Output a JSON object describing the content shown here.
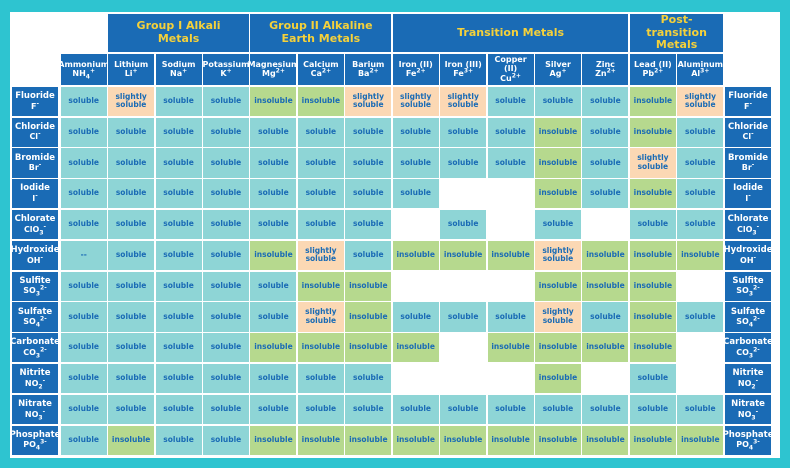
{
  "groups": [
    {
      "cations": [
        {
          "name": "Ammonium",
          "symbol": "NH",
          "sub": "4",
          "charge": "+"
        }
      ]
    },
    {
      "title": "Group I Alkali Metals",
      "cations": [
        {
          "name": "Lithium",
          "symbol": "Li",
          "charge": "+"
        },
        {
          "name": "Sodium",
          "symbol": "Na",
          "charge": "+"
        },
        {
          "name": "Potassium",
          "symbol": "K",
          "charge": "+"
        }
      ]
    },
    {
      "title": "Group II Alkaline Earth Metals",
      "cations": [
        {
          "name": "Magnesium",
          "symbol": "Mg",
          "charge": "2+"
        },
        {
          "name": "Calcium",
          "symbol": "Ca",
          "charge": "2+"
        },
        {
          "name": "Barium",
          "symbol": "Ba",
          "charge": "2+"
        }
      ]
    },
    {
      "title": "Transition Metals",
      "cations": [
        {
          "name": "Iron (II)",
          "symbol": "Fe",
          "charge": "2+"
        },
        {
          "name": "Iron (III)",
          "symbol": "Fe",
          "charge": "3+"
        },
        {
          "name": "Copper (II)",
          "symbol": "Cu",
          "charge": "2+"
        },
        {
          "name": "Silver",
          "symbol": "Ag",
          "charge": "+"
        },
        {
          "name": "Zinc",
          "symbol": "Zn",
          "charge": "2+"
        }
      ]
    },
    {
      "title": "Post-transition Metals",
      "cations": [
        {
          "name": "Lead (II)",
          "symbol": "Pb",
          "charge": "2+"
        },
        {
          "name": "Aluminum",
          "symbol": "Al",
          "charge": "3+"
        }
      ]
    }
  ],
  "rows": [
    {
      "anion": {
        "name": "Fluoride",
        "symbol": "F",
        "charge": "-"
      },
      "cells": [
        "soluble",
        "slightly soluble",
        "soluble",
        "soluble",
        "insoluble",
        "insoluble",
        "slightly soluble",
        "slightly soluble",
        "slightly soluble",
        "soluble",
        "soluble",
        "soluble",
        "insoluble",
        "slightly soluble"
      ]
    },
    {
      "anion": {
        "name": "Chloride",
        "symbol": "Cl",
        "charge": "-"
      },
      "cells": [
        "soluble",
        "soluble",
        "soluble",
        "soluble",
        "soluble",
        "soluble",
        "soluble",
        "soluble",
        "soluble",
        "soluble",
        "insoluble",
        "soluble",
        "insoluble",
        "soluble"
      ]
    },
    {
      "anion": {
        "name": "Bromide",
        "symbol": "Br",
        "charge": "-"
      },
      "cells": [
        "soluble",
        "soluble",
        "soluble",
        "soluble",
        "soluble",
        "soluble",
        "soluble",
        "soluble",
        "soluble",
        "soluble",
        "insoluble",
        "soluble",
        "slightly soluble",
        "soluble"
      ]
    },
    {
      "anion": {
        "name": "Iodide",
        "symbol": "I",
        "charge": "-"
      },
      "cells": [
        "soluble",
        "soluble",
        "soluble",
        "soluble",
        "soluble",
        "soluble",
        "soluble",
        "soluble",
        null,
        null,
        "insoluble",
        "soluble",
        "insoluble",
        "soluble"
      ]
    },
    {
      "anion": {
        "name": "Chlorate",
        "symbol": "ClO",
        "sub": "3",
        "charge": "-"
      },
      "cells": [
        "soluble",
        "soluble",
        "soluble",
        "soluble",
        "soluble",
        "soluble",
        "soluble",
        null,
        "soluble",
        null,
        "soluble",
        null,
        "soluble",
        "soluble"
      ]
    },
    {
      "anion": {
        "name": "Hydroxide",
        "symbol": "OH",
        "charge": "-"
      },
      "cells": [
        "--",
        "soluble",
        "soluble",
        "soluble",
        "insoluble",
        "slightly soluble",
        "soluble",
        "insoluble",
        "insoluble",
        "insoluble",
        "slightly soluble",
        "insoluble",
        "insoluble",
        "insoluble"
      ]
    },
    {
      "anion": {
        "name": "Sulfite",
        "symbol": "SO",
        "sub": "3",
        "charge": "2-"
      },
      "cells": [
        "soluble",
        "soluble",
        "soluble",
        "soluble",
        "soluble",
        "insoluble",
        "insoluble",
        null,
        null,
        null,
        "insoluble",
        "insoluble",
        "insoluble",
        null
      ]
    },
    {
      "anion": {
        "name": "Sulfate",
        "symbol": "SO",
        "sub": "4",
        "charge": "2-"
      },
      "cells": [
        "soluble",
        "soluble",
        "soluble",
        "soluble",
        "soluble",
        "slightly soluble",
        "insoluble",
        "soluble",
        "soluble",
        "soluble",
        "slightly soluble",
        "soluble",
        "insoluble",
        "soluble"
      ]
    },
    {
      "anion": {
        "name": "Carbonate",
        "symbol": "CO",
        "sub": "3",
        "charge": "2-"
      },
      "cells": [
        "soluble",
        "soluble",
        "soluble",
        "soluble",
        "insoluble",
        "insoluble",
        "insoluble",
        "insoluble",
        null,
        "insoluble",
        "insoluble",
        "insoluble",
        "insoluble",
        null
      ]
    },
    {
      "anion": {
        "name": "Nitrite",
        "symbol": "NO",
        "sub": "2",
        "charge": "-"
      },
      "cells": [
        "soluble",
        "soluble",
        "soluble",
        "soluble",
        "soluble",
        "soluble",
        "soluble",
        null,
        null,
        null,
        "insoluble",
        null,
        "soluble",
        null
      ]
    },
    {
      "anion": {
        "name": "Nitrate",
        "symbol": "NO",
        "sub": "3",
        "charge": "-"
      },
      "cells": [
        "soluble",
        "soluble",
        "soluble",
        "soluble",
        "soluble",
        "soluble",
        "soluble",
        "soluble",
        "soluble",
        "soluble",
        "soluble",
        "soluble",
        "soluble",
        "soluble"
      ]
    },
    {
      "anion": {
        "name": "Phosphate",
        "symbol": "PO",
        "sub": "4",
        "charge": "3-"
      },
      "cells": [
        "soluble",
        "insoluble",
        "soluble",
        "soluble",
        "insoluble",
        "insoluble",
        "insoluble",
        "insoluble",
        "insoluble",
        "insoluble",
        "insoluble",
        "insoluble",
        "insoluble",
        "insoluble"
      ]
    }
  ]
}
